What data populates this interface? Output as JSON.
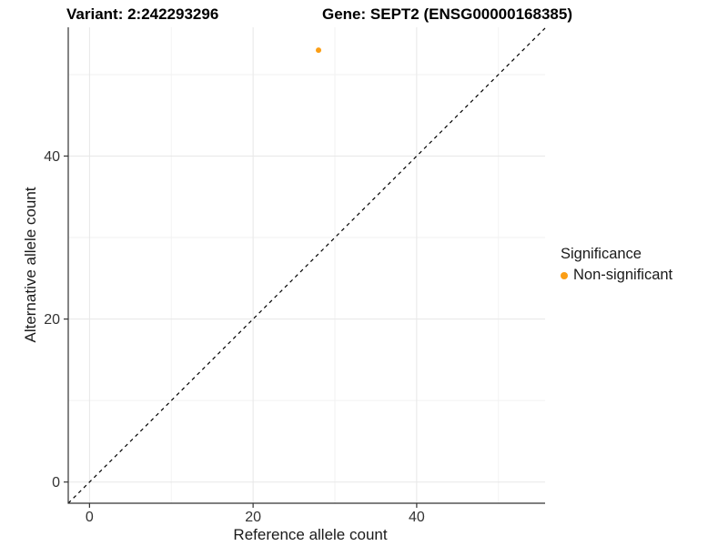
{
  "titles": {
    "variant": "Variant: 2:242293296",
    "gene": "Gene: SEPT2 (ENSG00000168385)"
  },
  "chart_data": {
    "type": "scatter",
    "xlabel": "Reference allele count",
    "ylabel": "Alternative allele count",
    "xlim": [
      -2.6,
      55.7
    ],
    "ylim": [
      -2.6,
      55.8
    ],
    "xticks": [
      0,
      20,
      40
    ],
    "yticks": [
      0,
      20,
      40
    ],
    "xminor": [
      10,
      30,
      50
    ],
    "yminor": [
      10,
      30,
      50
    ],
    "grid": "on",
    "legend_position": "right",
    "series": [
      {
        "name": "Non-significant",
        "color": "#FB9E15",
        "points": [
          {
            "x": 28,
            "y": 53
          }
        ]
      }
    ],
    "reference_line": {
      "kind": "identity",
      "dash": "dashed",
      "color": "#000000"
    }
  },
  "legend": {
    "title": "Significance",
    "items": [
      {
        "label": "Non-significant",
        "color": "#FB9E15"
      }
    ]
  },
  "style": {
    "grid_major": "#E7E7E7",
    "grid_minor": "#F2F2F2",
    "axis_line": "#333333",
    "tick_color": "#333333",
    "tick_label_color": "#333333",
    "tick_label_size": 16
  }
}
